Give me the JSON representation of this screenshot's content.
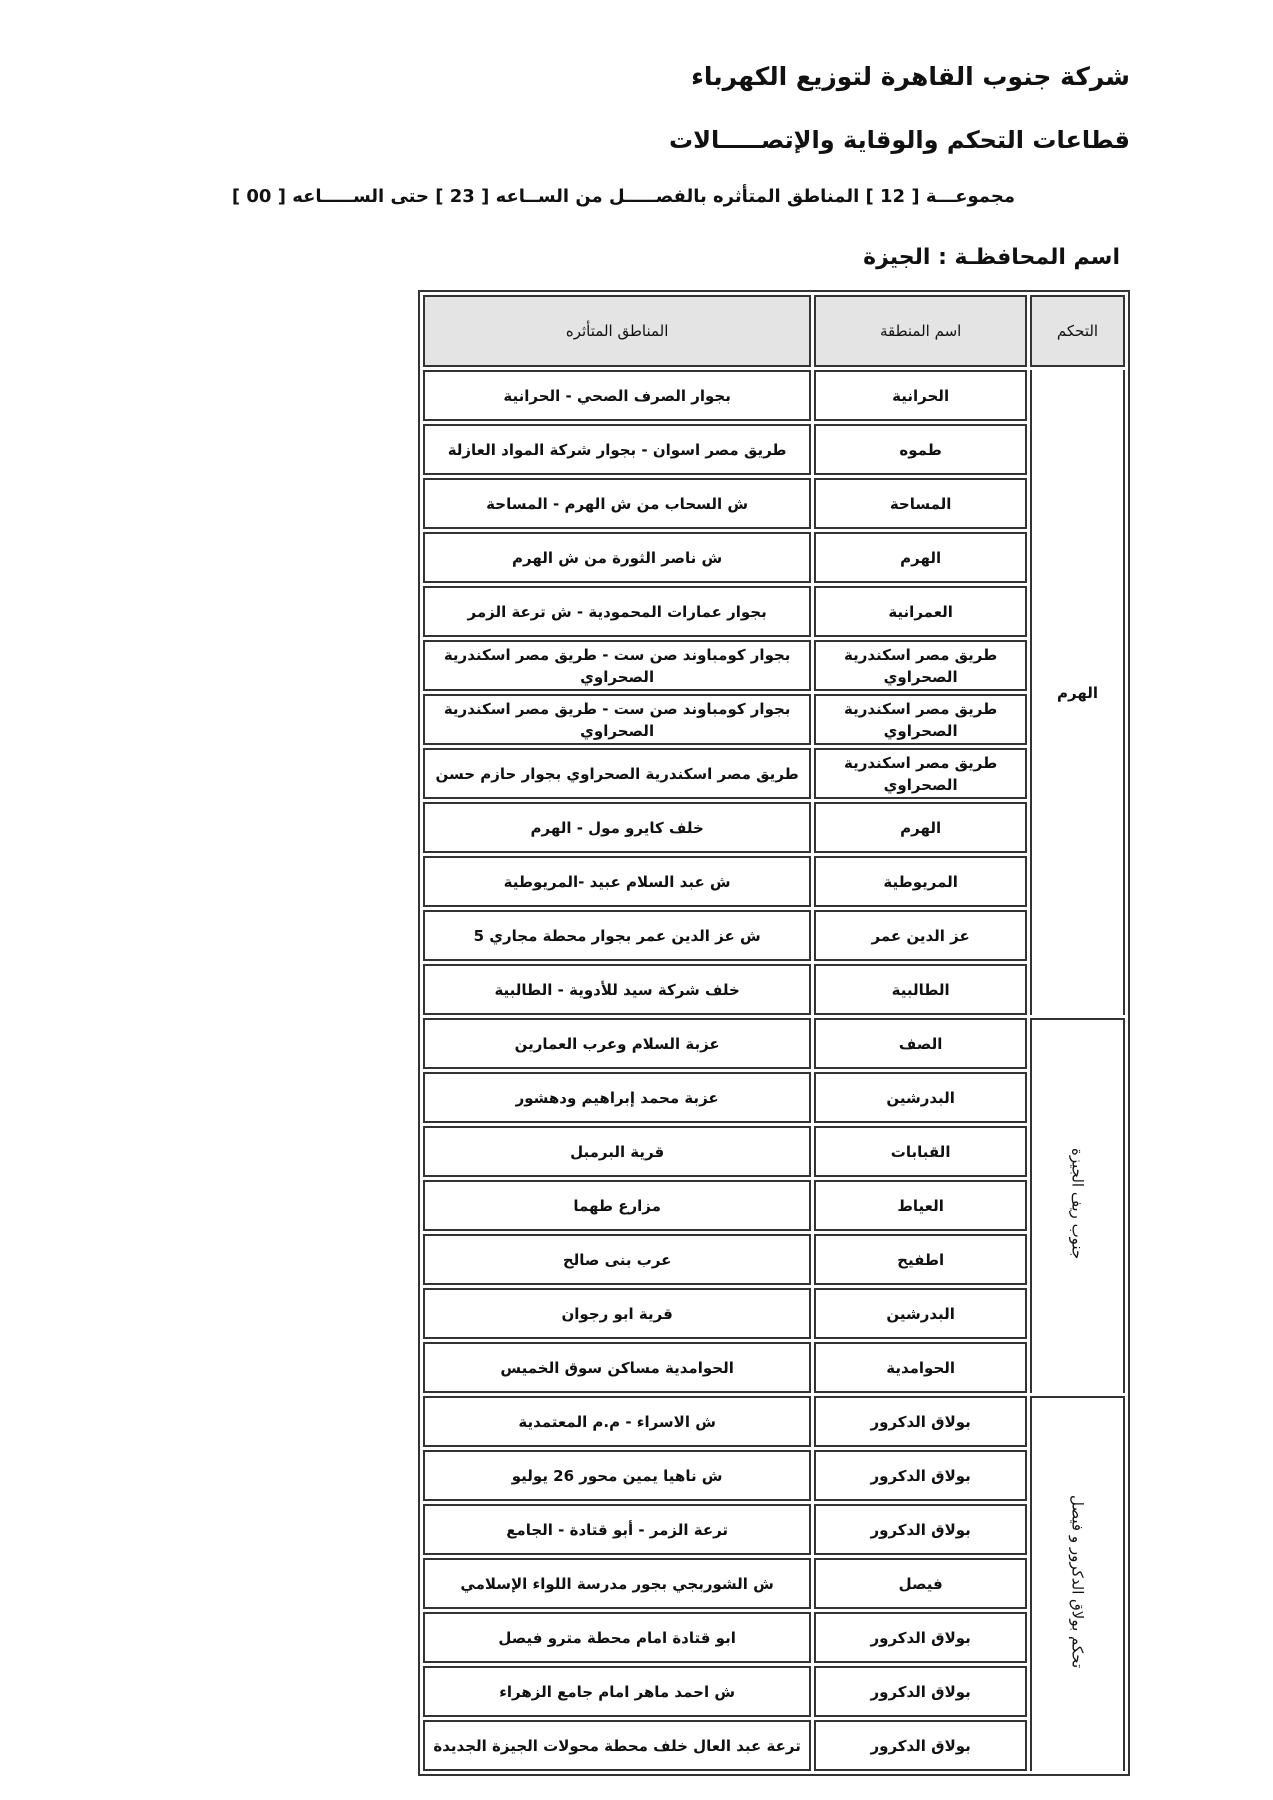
{
  "header": {
    "company": "شركة جنوب القاهرة لتوزيع الكهرباء",
    "sector": "قطاعات التحكم والوقاية والإتصـــــالات",
    "group_line": "مجموعـــة [ 12 ] المناطق المتأثره بالفصـــــل من الســاعه [ 23 ] حتى الســـــاعه [ 00 ]",
    "governorate": "اسم المحافظـة : الجيزة"
  },
  "table": {
    "columns": [
      "التحكم",
      "اسم المنطقة",
      "المناطق المتأثره"
    ],
    "groups": [
      {
        "control": "الهرم",
        "vertical": false,
        "rows": [
          {
            "region": "الحرانية",
            "areas": "بجوار الصرف الصحي - الحرانية"
          },
          {
            "region": "طموه",
            "areas": "طريق مصر اسوان - بجوار شركة المواد العازلة"
          },
          {
            "region": "المساحة",
            "areas": "ش السحاب من ش الهرم - المساحة"
          },
          {
            "region": "الهرم",
            "areas": "ش ناصر الثورة من ش الهرم"
          },
          {
            "region": "العمرانية",
            "areas": "بجوار عمارات المحمودية - ش ترعة الزمر"
          },
          {
            "region": "طريق مصر اسكندرية الصحراوي",
            "areas": "بجوار كومباوند صن ست - طريق مصر اسكندرية الصحراوي"
          },
          {
            "region": "طريق مصر اسكندرية الصحراوي",
            "areas": "بجوار كومباوند صن ست - طريق مصر اسكندرية الصحراوي"
          },
          {
            "region": "طريق مصر اسكندرية الصحراوي",
            "areas": "طريق مصر اسكندرية الصحراوي بجوار حازم حسن"
          },
          {
            "region": "الهرم",
            "areas": "خلف كايرو مول - الهرم"
          },
          {
            "region": "المريوطية",
            "areas": "ش عبد السلام عبيد -المريوطية"
          },
          {
            "region": "عز الدين عمر",
            "areas": "ش عز الدين عمر بجوار محطة مجاري 5"
          },
          {
            "region": "الطالبية",
            "areas": "خلف شركة سيد للأدوية - الطالبية"
          }
        ]
      },
      {
        "control": "جنوب ريف الجيزة",
        "vertical": true,
        "rows": [
          {
            "region": "الصف",
            "areas": "عزبة السلام وعرب العمارين"
          },
          {
            "region": "البدرشين",
            "areas": "عزبة محمد إبراهيم ودهشور"
          },
          {
            "region": "القبابات",
            "areas": "قرية البرمبل"
          },
          {
            "region": "العياط",
            "areas": "مزارع طهما"
          },
          {
            "region": "اطفيح",
            "areas": "عرب بنى صالح"
          },
          {
            "region": "البدرشين",
            "areas": "قرية ابو رجوان"
          },
          {
            "region": "الحوامدية",
            "areas": "الحوامدية مساكن سوق الخميس"
          }
        ]
      },
      {
        "control": "تحكم بولاق الدكرور و فيصل",
        "vertical": true,
        "rows": [
          {
            "region": "بولاق الدكرور",
            "areas": "ش الاسراء - م.م المعتمدية"
          },
          {
            "region": "بولاق الدكرور",
            "areas": "ش ناهيا يمين محور 26 يوليو"
          },
          {
            "region": "بولاق الدكرور",
            "areas": "ترعة الزمر - أبو قتادة - الجامع"
          },
          {
            "region": "فيصل",
            "areas": "ش الشوربجي بجور مدرسة اللواء الإسلامي"
          },
          {
            "region": "بولاق الدكرور",
            "areas": "ابو قتادة امام محطة مترو فيصل"
          },
          {
            "region": "بولاق الدكرور",
            "areas": "ش احمد ماهر امام جامع الزهراء"
          },
          {
            "region": "بولاق الدكرور",
            "areas": "ترعة عبد العال خلف محطة محولات الجيزة الجديدة"
          }
        ]
      }
    ]
  }
}
